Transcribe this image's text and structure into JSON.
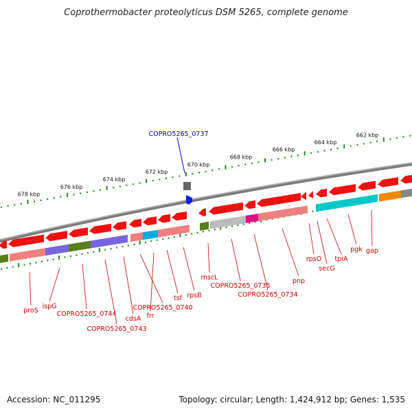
{
  "title": "Coprothermobacter proteolyticus DSM 5265, complete genome",
  "footer": {
    "accession": "Accession: NC_011295",
    "topology": "Topology: circular; Length: 1,424,912 bp; Genes: 1,535"
  },
  "colors": {
    "gene_red": "#ee1111",
    "gene_pink": "#f08080",
    "teal": "#00c8c8",
    "cyan": "#00aadd",
    "olive": "#5a7f1c",
    "purple": "#7766dd",
    "magenta": "#e0108a",
    "orange": "#f08a00",
    "gray": "#bbbbbb",
    "backbone": "#808080",
    "tick": "#1d8a1d",
    "label": "#cc0000",
    "selected": "#0000cc"
  },
  "scale_labels": [
    "678 kbp",
    "676 kbp",
    "674 kbp",
    "672 kbp",
    "670 kbp",
    "668 kbp",
    "666 kbp",
    "664 kbp",
    "662 kbp"
  ],
  "selected_gene": "COPRO5265_0737",
  "gene_labels": [
    "proS",
    "ispG",
    "COPRO5265_0744",
    "COPRO5265_0743",
    "cdsA",
    "COPRO5265_0740",
    "frr",
    "tsf",
    "rpsB",
    "mscL",
    "COPRO5265_0735",
    "COPRO5265_0734",
    "pnp",
    "rpsO",
    "secG",
    "tpiA",
    "pgk",
    "gap"
  ]
}
